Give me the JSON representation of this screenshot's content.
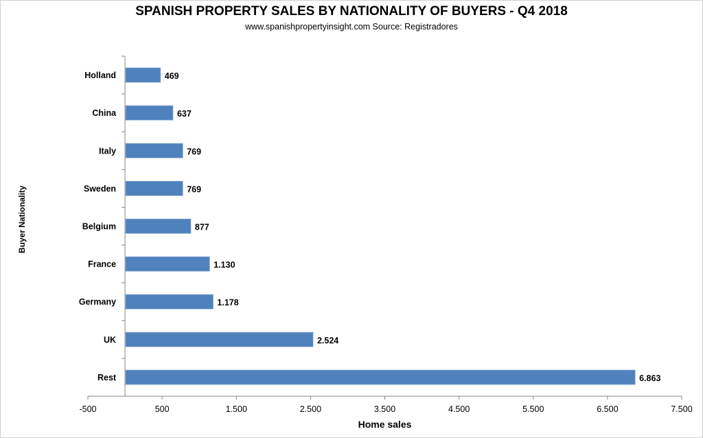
{
  "chart_data": {
    "type": "bar",
    "orientation": "horizontal",
    "title": "SPANISH PROPERTY SALES BY NATIONALITY OF BUYERS - Q4 2018",
    "subtitle": "www.spanishpropertyinsight.com Source: Registradores",
    "xlabel": "Home sales",
    "ylabel": "Buyer Nationality",
    "categories": [
      "Holland",
      "China",
      "Italy",
      "Sweden",
      "Belgium",
      "France",
      "Germany",
      "UK",
      "Rest"
    ],
    "values": [
      469,
      637,
      769,
      769,
      877,
      1130,
      1178,
      2524,
      6863
    ],
    "data_labels": [
      "469",
      "637",
      "769",
      "769",
      "877",
      "1.130",
      "1.178",
      "2.524",
      "6.863"
    ],
    "xlim": [
      -500,
      7500
    ],
    "xticks": [
      -500,
      500,
      1500,
      2500,
      3500,
      4500,
      5500,
      6500,
      7500
    ],
    "xtick_labels": [
      "-500",
      "500",
      "1.500",
      "2.500",
      "3.500",
      "4.500",
      "5.500",
      "6.500",
      "7.500"
    ],
    "grid": false,
    "legend": "none",
    "bar_color": "#4f81bd"
  }
}
